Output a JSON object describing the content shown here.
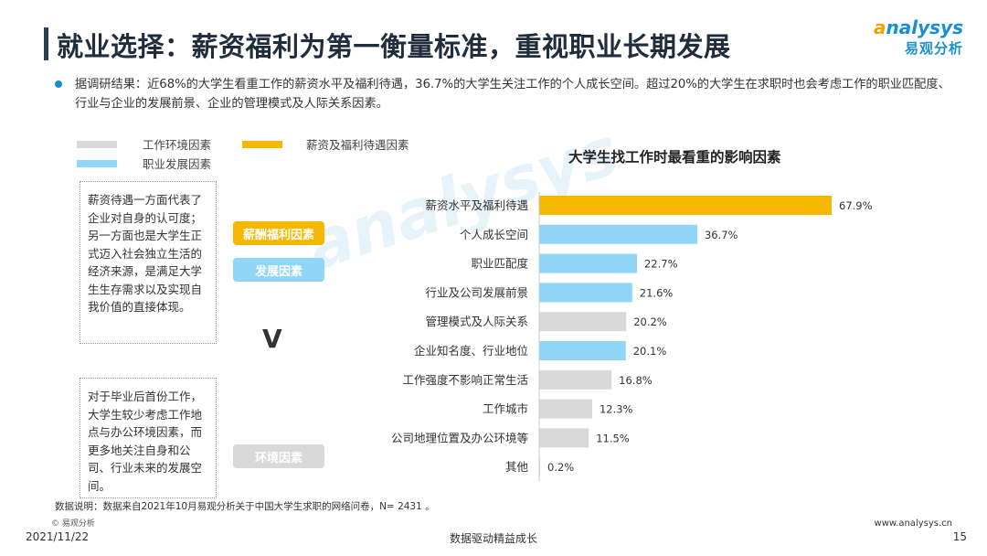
{
  "header": {
    "title": "就业选择：薪资福利为第一衡量标准，重视职业长期发展",
    "logo_en_o": "a",
    "logo_en_rest": "nalysys",
    "logo_cn": "易观分析"
  },
  "summary": {
    "text": "据调研结果：近68%的大学生看重工作的薪资水平及福利待遇，36.7%的大学生关注工作的个人成长空间。超过20%的大学生在求职时也会考虑工作的职业匹配度、行业与企业的发展前景、企业的管理模式及人际关系因素。"
  },
  "legend": {
    "env": "工作环境因素",
    "salary": "薪资及福利待遇因素",
    "dev": "职业发展因素"
  },
  "side": {
    "box1": "薪资待遇一方面代表了企业对自身的认可度；另一方面也是大学生正式迈入社会独立生活的经济来源，是满足大学生生存需求以及实现自我价值的直接体现。",
    "box2": "对于毕业后首份工作，大学生较少考虑工作地点与办公环境因素，而更多地关注自身和公司、行业未来的发展空间。",
    "tag_salary": "薪酬福利因素",
    "tag_dev": "发展因素",
    "tag_env": "环境因素",
    "vs": "V"
  },
  "colors": {
    "salary": "#f5b800",
    "dev": "#8fd6f7",
    "env": "#d9d9d9",
    "brand": "#1a8fd0"
  },
  "chart_data": {
    "type": "bar",
    "orientation": "horizontal",
    "title": "大学生找工作时最看重的影响因素",
    "categories": [
      "薪资水平及福利待遇",
      "个人成长空间",
      "职业匹配度",
      "行业及公司发展前景",
      "管理模式及人际关系",
      "企业知名度、行业地位",
      "工作强度不影响正常生活",
      "工作城市",
      "公司地理位置及办公环境等",
      "其他"
    ],
    "values": [
      67.9,
      36.7,
      22.7,
      21.6,
      20.2,
      20.1,
      16.8,
      12.3,
      11.5,
      0.2
    ],
    "value_labels": [
      "67.9%",
      "36.7%",
      "22.7%",
      "21.6%",
      "20.2%",
      "20.1%",
      "16.8%",
      "12.3%",
      "11.5%",
      "0.2%"
    ],
    "groups": [
      "salary",
      "dev",
      "dev",
      "dev",
      "env",
      "dev",
      "env",
      "env",
      "env",
      "env"
    ],
    "unit": "%",
    "xlim": [
      0,
      70
    ]
  },
  "footer": {
    "note": "数据说明：数据来自2021年10月易观分析关于中国大学生求职的网络问卷，N= 2431 。",
    "copyright": "© 易观分析",
    "date": "2021/11/22",
    "slogan": "数据驱动精益成长",
    "site": "www.analysys.cn",
    "page": "15"
  }
}
